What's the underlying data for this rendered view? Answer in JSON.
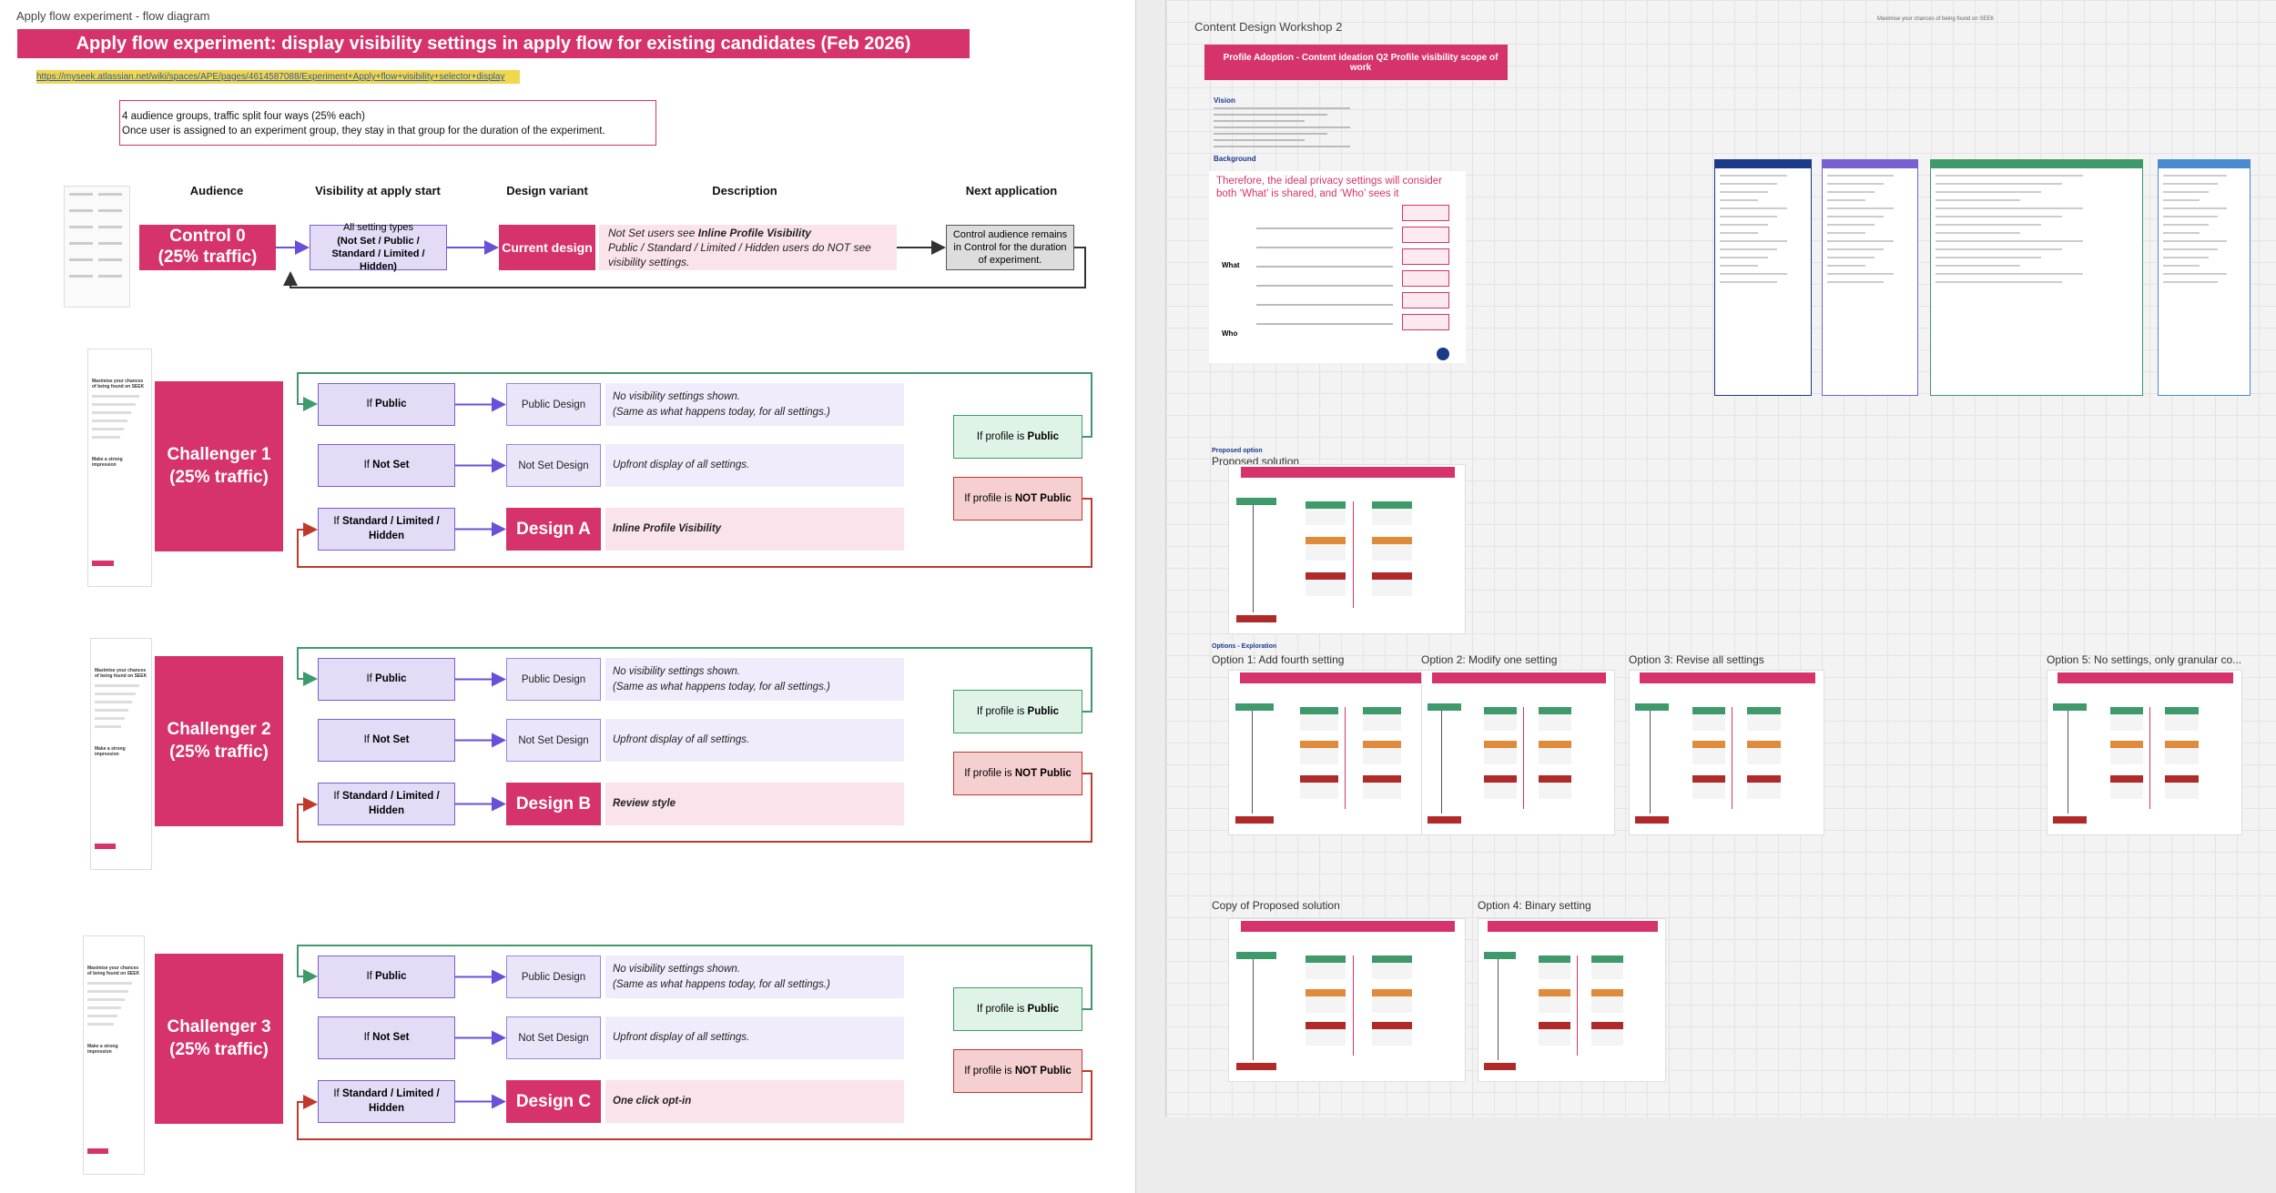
{
  "left_board": {
    "label": "Apply flow experiment - flow diagram",
    "title": "Apply flow experiment: display visibility settings in apply flow for existing candidates (Feb 2026)",
    "link": "https://myseek.atlassian.net/wiki/spaces/APE/pages/4614587088/Experiment+Apply+flow+visibility+selector+display",
    "note": [
      "4 audience groups, traffic split four ways (25% each)",
      "Once user is assigned to an experiment group, they stay in that group for the duration of the experiment."
    ],
    "headers": [
      "Audience",
      "Visibility at apply start",
      "Design variant",
      "Description",
      "Next application"
    ],
    "control": {
      "name": "Control 0",
      "traffic": "(25% traffic)",
      "visibility": [
        "All setting types",
        "(Not Set / Public / Standard / Limited / Hidden)"
      ],
      "design": "Current design",
      "description": {
        "lead": "Not Set users see",
        "emphasis": "Inline Profile Visibility",
        "rest": "Public / Standard / Limited / Hidden users do NOT see visibility settings."
      },
      "next": "Control audience remains in Control for the duration of experiment."
    },
    "challengers": [
      {
        "name": "Challenger 1",
        "traffic": "(25% traffic)",
        "thumbnail": [
          "Maximise your chances of being found on SEEK",
          "Make a strong impression"
        ],
        "rows": [
          {
            "if": "If",
            "condition": "Public",
            "design": "Public Design",
            "description": [
              "No visibility settings shown.",
              "(Same as what happens today, for all settings.)"
            ]
          },
          {
            "if": "If",
            "condition": "Not Set",
            "design": "Not Set Design",
            "description": [
              "Upfront display of all settings."
            ]
          },
          {
            "if": "If",
            "condition": "Standard / Limited / Hidden",
            "design": "Design A",
            "description": [
              "Inline Profile Visibility"
            ]
          }
        ],
        "feedback": [
          {
            "lead": "If profile is",
            "value": "Public"
          },
          {
            "lead": "If profile is",
            "value": "NOT Public"
          }
        ]
      },
      {
        "name": "Challenger 2",
        "traffic": "(25% traffic)",
        "thumbnail": [
          "Maximise your chances of being found on SEEK",
          "Make a strong impression"
        ],
        "rows": [
          {
            "if": "If",
            "condition": "Public",
            "design": "Public Design",
            "description": [
              "No visibility settings shown.",
              "(Same as what happens today, for all settings.)"
            ]
          },
          {
            "if": "If",
            "condition": "Not Set",
            "design": "Not Set Design",
            "description": [
              "Upfront display of all settings."
            ]
          },
          {
            "if": "If",
            "condition": "Standard / Limited / Hidden",
            "design": "Design B",
            "description": [
              "Review style"
            ]
          }
        ],
        "feedback": [
          {
            "lead": "If profile is",
            "value": "Public"
          },
          {
            "lead": "If profile is",
            "value": "NOT Public"
          }
        ]
      },
      {
        "name": "Challenger 3",
        "traffic": "(25% traffic)",
        "thumbnail": [
          "Maximise your chances of being found on SEEK",
          "Make a strong impression"
        ],
        "rows": [
          {
            "if": "If",
            "condition": "Public",
            "design": "Public Design",
            "description": [
              "No visibility settings shown.",
              "(Same as what happens today, for all settings.)"
            ]
          },
          {
            "if": "If",
            "condition": "Not Set",
            "design": "Not Set Design",
            "description": [
              "Upfront display of all settings."
            ]
          },
          {
            "if": "If",
            "condition": "Standard / Limited / Hidden",
            "design": "Design C",
            "description": [
              "One click opt-in"
            ]
          }
        ],
        "feedback": [
          {
            "lead": "If profile is",
            "value": "Public"
          },
          {
            "lead": "If profile is",
            "value": "NOT Public"
          }
        ]
      }
    ]
  },
  "right_board": {
    "label": "Content Design Workshop 2",
    "top_note": "Maximise your chances of being found on SEEK",
    "banner": "Profile Adoption - Content ideation Q2 Profile visibility scope of work",
    "vision": "Vision",
    "background": "Background",
    "quote": "Therefore, the ideal privacy settings will consider both ‘What’ is shared, and ‘Who’ sees it",
    "what": "What",
    "who": "Who",
    "proposed_heading": "Proposed option",
    "proposed_title": "Proposed solution",
    "options_heading": "Options - Exploration",
    "options": [
      "Option 1: Add fourth setting",
      "Option 2: Modify one setting",
      "Option 3: Revise all settings",
      "Option 5: No settings, only granular co..."
    ],
    "copy_label": "Copy of Proposed solution",
    "option4": "Option 4: Binary setting"
  }
}
